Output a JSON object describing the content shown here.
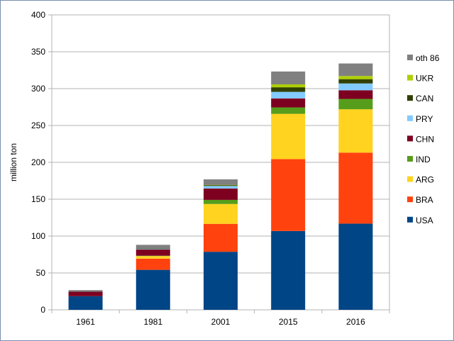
{
  "chart_data": {
    "type": "bar",
    "stacked": true,
    "title": "",
    "xlabel": "",
    "ylabel": "million ton",
    "ylim": [
      0,
      400
    ],
    "yticks": [
      0,
      50,
      100,
      150,
      200,
      250,
      300,
      350,
      400
    ],
    "grid": true,
    "legend_position": "right",
    "categories": [
      "1961",
      "1981",
      "2001",
      "2015",
      "2016"
    ],
    "series": [
      {
        "name": "USA",
        "color": "#004586",
        "values": [
          18.5,
          54.2,
          78.7,
          106.9,
          116.9
        ]
      },
      {
        "name": "BRA",
        "color": "#ff420e",
        "values": [
          0,
          15.2,
          37.9,
          97.5,
          96.3
        ]
      },
      {
        "name": "ARG",
        "color": "#ffd320",
        "values": [
          0,
          3.5,
          26.9,
          61.4,
          58.8
        ]
      },
      {
        "name": "IND",
        "color": "#579d1c",
        "values": [
          0,
          0.5,
          5.6,
          8.7,
          14.0
        ]
      },
      {
        "name": "CHN",
        "color": "#7e0021",
        "values": [
          6.0,
          8.5,
          15.4,
          12.2,
          11.8
        ]
      },
      {
        "name": "PRY",
        "color": "#83caff",
        "values": [
          0,
          0.6,
          3.5,
          8.9,
          9.2
        ]
      },
      {
        "name": "CAN",
        "color": "#314004",
        "values": [
          0,
          0.6,
          1.3,
          6.2,
          5.8
        ]
      },
      {
        "name": "UKR",
        "color": "#aecf00",
        "values": [
          0,
          0,
          0.1,
          3.9,
          4.3
        ]
      },
      {
        "name": "oth 86",
        "color": "#808080",
        "values": [
          2.2,
          5.0,
          7.5,
          17.5,
          17.0
        ]
      }
    ]
  }
}
